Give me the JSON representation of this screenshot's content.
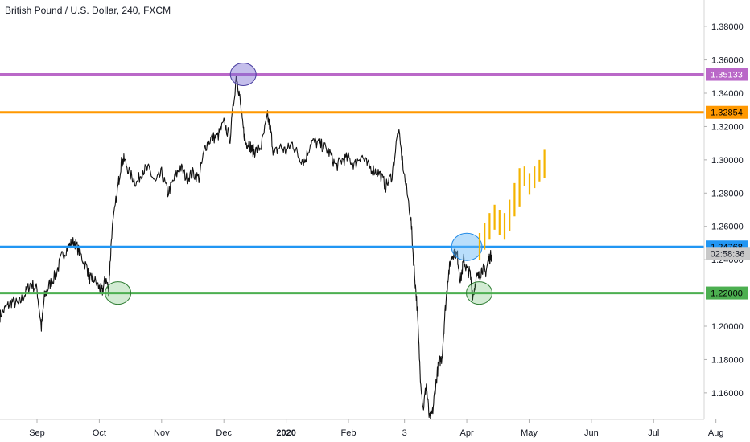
{
  "header": {
    "title": "British Pound / U.S. Dollar, 240, FXCM"
  },
  "chart_data": {
    "type": "line",
    "title": "British Pound / U.S. Dollar, 240, FXCM",
    "ylim": [
      1.144,
      1.396
    ],
    "grid": false,
    "y_ticks": [
      "1.16000",
      "1.18000",
      "1.20000",
      "1.22000",
      "1.24000",
      "1.26000",
      "1.28000",
      "1.30000",
      "1.32000",
      "1.34000",
      "1.36000",
      "1.38000"
    ],
    "x_ticks": [
      {
        "label": "Sep",
        "t": 0.0,
        "bold": false
      },
      {
        "label": "Oct",
        "t": 1.0,
        "bold": false
      },
      {
        "label": "Nov",
        "t": 2.0,
        "bold": false
      },
      {
        "label": "Dec",
        "t": 3.0,
        "bold": false
      },
      {
        "label": "2020",
        "t": 4.0,
        "bold": true
      },
      {
        "label": "Feb",
        "t": 5.0,
        "bold": false
      },
      {
        "label": "3",
        "t": 5.9,
        "bold": false
      },
      {
        "label": "Apr",
        "t": 6.9,
        "bold": false
      },
      {
        "label": "May",
        "t": 7.9,
        "bold": false
      },
      {
        "label": "Jun",
        "t": 8.9,
        "bold": false
      },
      {
        "label": "Jul",
        "t": 9.9,
        "bold": false
      },
      {
        "label": "Aug",
        "t": 10.9,
        "bold": false
      }
    ],
    "series": [
      {
        "values_t": [
          -0.6,
          -0.5,
          -0.4,
          -0.3,
          -0.2,
          -0.1,
          0.0,
          0.07,
          0.12,
          0.2,
          0.3,
          0.4,
          0.5,
          0.6,
          0.7,
          0.8,
          0.85,
          0.9,
          1.0,
          1.05,
          1.1,
          1.15,
          1.2,
          1.3,
          1.35,
          1.4,
          1.5,
          1.6,
          1.7,
          1.8,
          1.9,
          2.0,
          2.1,
          2.2,
          2.3,
          2.4,
          2.5,
          2.6,
          2.7,
          2.8,
          2.9,
          3.0,
          3.1,
          3.2,
          3.25,
          3.3,
          3.35,
          3.4,
          3.45,
          3.5,
          3.6,
          3.7,
          3.75,
          3.8,
          3.9,
          4.0,
          4.1,
          4.2,
          4.3,
          4.4,
          4.5,
          4.6,
          4.7,
          4.8,
          4.9,
          5.0,
          5.1,
          5.2,
          5.3,
          5.4,
          5.5,
          5.6,
          5.7,
          5.8,
          5.9,
          6.0,
          6.05,
          6.1,
          6.15,
          6.2,
          6.25,
          6.3,
          6.35,
          6.4,
          6.45,
          6.5,
          6.55,
          6.6,
          6.65,
          6.7,
          6.75,
          6.8,
          6.85,
          6.9,
          6.95,
          7.0,
          7.05,
          7.1,
          7.15,
          7.2,
          7.25,
          7.3
        ],
        "values": [
          1.206,
          1.211,
          1.215,
          1.213,
          1.219,
          1.226,
          1.222,
          1.199,
          1.218,
          1.225,
          1.231,
          1.242,
          1.248,
          1.251,
          1.243,
          1.235,
          1.228,
          1.229,
          1.223,
          1.221,
          1.229,
          1.222,
          1.256,
          1.284,
          1.298,
          1.3,
          1.291,
          1.286,
          1.294,
          1.294,
          1.286,
          1.292,
          1.28,
          1.288,
          1.296,
          1.289,
          1.292,
          1.289,
          1.308,
          1.313,
          1.314,
          1.322,
          1.313,
          1.351,
          1.339,
          1.321,
          1.31,
          1.31,
          1.306,
          1.305,
          1.308,
          1.326,
          1.318,
          1.303,
          1.308,
          1.305,
          1.31,
          1.302,
          1.299,
          1.311,
          1.31,
          1.308,
          1.304,
          1.296,
          1.3,
          1.301,
          1.297,
          1.303,
          1.297,
          1.294,
          1.292,
          1.284,
          1.291,
          1.318,
          1.29,
          1.266,
          1.237,
          1.213,
          1.173,
          1.15,
          1.165,
          1.144,
          1.148,
          1.165,
          1.178,
          1.181,
          1.208,
          1.23,
          1.241,
          1.245,
          1.242,
          1.227,
          1.24,
          1.234,
          1.232,
          1.218,
          1.229,
          1.23,
          1.235,
          1.232,
          1.24,
          1.243
        ]
      }
    ],
    "levels": [
      {
        "value": "1.35133",
        "y": 1.35133,
        "color": "#ba68c8",
        "badge_text_color": "#ffffff"
      },
      {
        "value": "1.32854",
        "y": 1.32854,
        "color": "#ff9800",
        "badge_text_color": "#000000"
      },
      {
        "value": "1.24768",
        "y": 1.24768,
        "color": "#2196f3",
        "badge_text_color": "#000000"
      },
      {
        "value": "1.22000",
        "y": 1.22,
        "color": "#4caf50",
        "badge_text_color": "#000000"
      }
    ],
    "price_countdown": {
      "text": "02:58:36",
      "color": "#c8c8c8",
      "y": 1.2438
    },
    "circles": [
      {
        "t": 3.31,
        "y": 1.35133,
        "fill": "rgba(125,110,210,0.45)",
        "stroke": "#4a3fa0"
      },
      {
        "t": 1.3,
        "y": 1.22,
        "fill": "rgba(76,175,80,0.25)",
        "stroke": "#2e7d32"
      },
      {
        "t": 6.9,
        "y": 1.24768,
        "fill": "rgba(100,181,246,0.45)",
        "stroke": "#1e88e5"
      },
      {
        "t": 7.1,
        "y": 1.22,
        "fill": "rgba(76,175,80,0.25)",
        "stroke": "#2e7d32"
      }
    ],
    "projection": {
      "color": "#f4b400",
      "t_values": [
        7.4,
        7.5,
        7.6,
        7.7,
        7.8,
        7.9,
        8.0,
        8.1,
        8.2,
        8.3,
        8.4,
        8.5,
        8.6,
        8.7
      ],
      "lows": [
        1.24,
        1.246,
        1.252,
        1.258,
        1.255,
        1.252,
        1.257,
        1.266,
        1.272,
        1.284,
        1.279,
        1.283,
        1.287,
        1.289
      ],
      "highs": [
        1.256,
        1.262,
        1.268,
        1.273,
        1.27,
        1.268,
        1.276,
        1.286,
        1.295,
        1.296,
        1.292,
        1.296,
        1.3,
        1.306
      ]
    }
  }
}
